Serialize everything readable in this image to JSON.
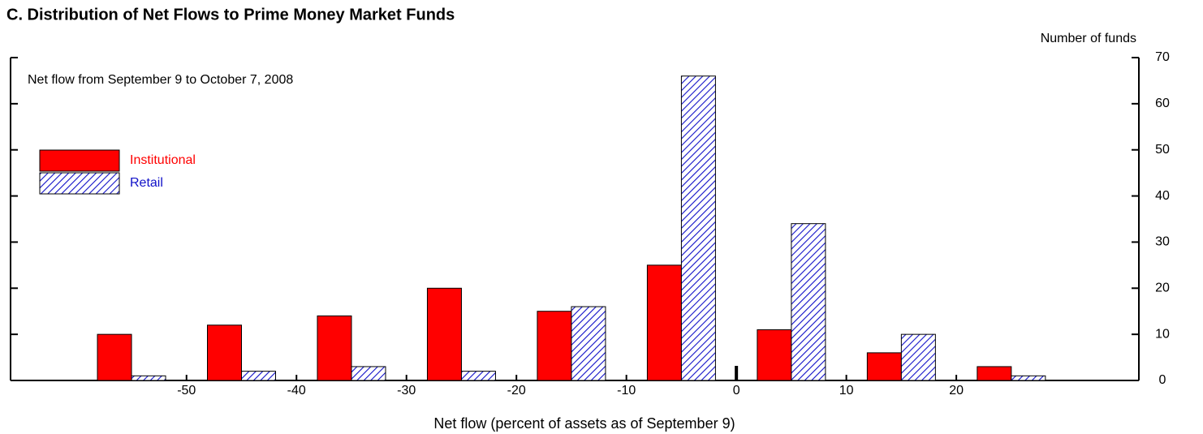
{
  "chart_data": {
    "type": "bar",
    "title": "C. Distribution of Net Flows to Prime Money Market Funds",
    "annotation": "Net flow from September 9 to October 7, 2008",
    "xlabel": "Net flow (percent of assets as of September 9)",
    "ylabel": "Number of funds",
    "x": [
      -55,
      -45,
      -35,
      -25,
      -15,
      -5,
      5,
      15,
      25
    ],
    "series": [
      {
        "name": "Institutional",
        "color": "#ff0000",
        "values": [
          10,
          12,
          14,
          20,
          15,
          25,
          11,
          6,
          3
        ]
      },
      {
        "name": "Retail",
        "color": "#1010c8",
        "pattern": "hatch",
        "values": [
          1,
          2,
          3,
          2,
          16,
          66,
          34,
          10,
          1
        ]
      }
    ],
    "xlim": [
      -66,
      36.6
    ],
    "xticks": [
      -50,
      -40,
      -30,
      -20,
      -10,
      0,
      10,
      20
    ],
    "ylim": [
      0,
      70
    ],
    "yticks": [
      0,
      10,
      20,
      30,
      40,
      50,
      60,
      70
    ],
    "y_axis_side": "right",
    "legend": "upper left"
  }
}
